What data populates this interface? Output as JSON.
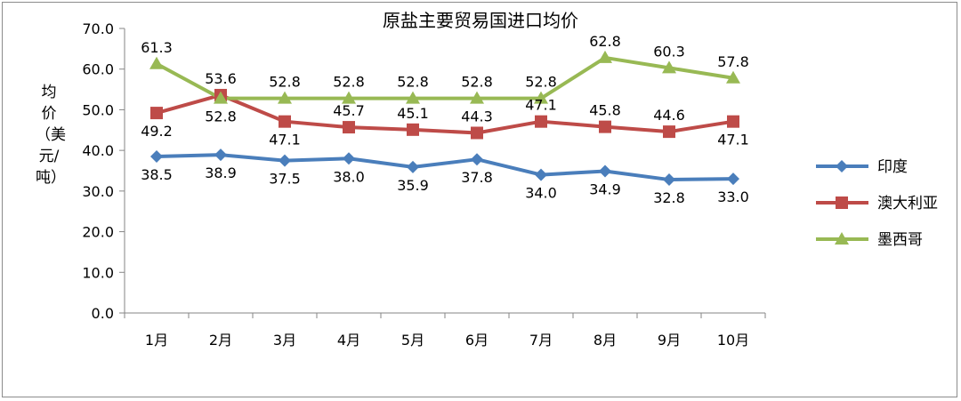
{
  "chart_data": {
    "type": "line",
    "title": "原盐主要贸易国进口均价",
    "ylabel": "均价（美元/吨）",
    "xlabel": "",
    "ylim": [
      0,
      70
    ],
    "y_ticks": [
      "0.0",
      "10.0",
      "20.0",
      "30.0",
      "40.0",
      "50.0",
      "60.0",
      "70.0"
    ],
    "categories": [
      "1月",
      "2月",
      "3月",
      "4月",
      "5月",
      "6月",
      "7月",
      "8月",
      "9月",
      "10月"
    ],
    "grid": false,
    "legend_position": "right",
    "series": [
      {
        "name": "印度",
        "color": "#4a7ebb",
        "marker": "diamond",
        "values": [
          38.5,
          38.9,
          37.5,
          38.0,
          35.9,
          37.8,
          34.0,
          34.9,
          32.8,
          33.0
        ]
      },
      {
        "name": "澳大利亚",
        "color": "#be4b48",
        "marker": "square",
        "values": [
          49.2,
          53.6,
          47.1,
          45.7,
          45.1,
          44.3,
          47.1,
          45.8,
          44.6,
          47.1
        ]
      },
      {
        "name": "墨西哥",
        "color": "#98b954",
        "marker": "triangle",
        "values": [
          61.3,
          52.8,
          52.8,
          52.8,
          52.8,
          52.8,
          52.8,
          62.8,
          60.3,
          57.8
        ]
      }
    ]
  }
}
